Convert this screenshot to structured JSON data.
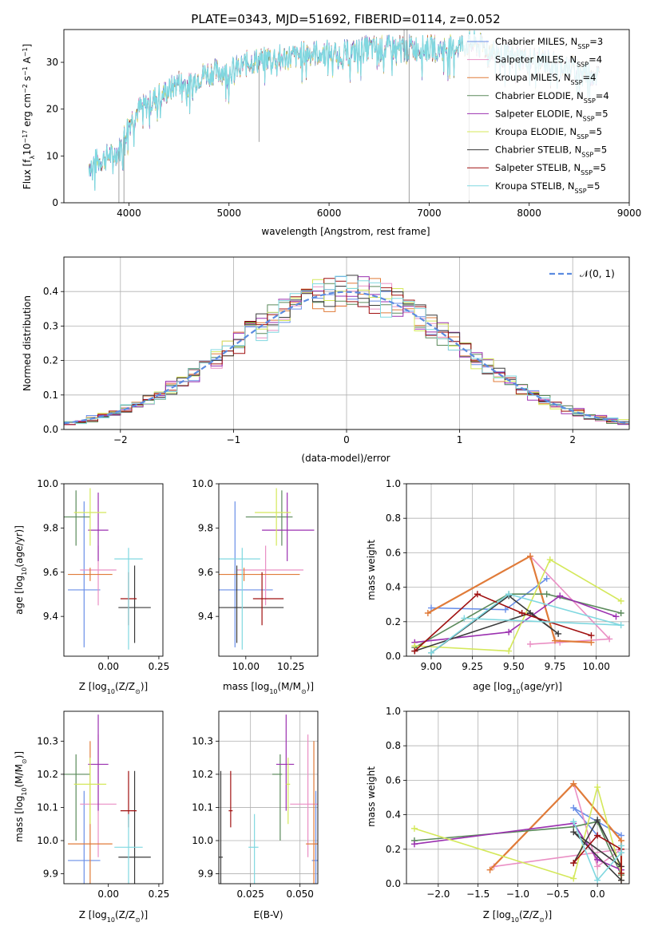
{
  "colors": {
    "Chabrier MILES": "#6a8fe8",
    "Salpeter MILES": "#ea8fc4",
    "Kroupa MILES": "#e07b39",
    "Chabrier ELODIE": "#5b8a5b",
    "Salpeter ELODIE": "#9b30b0",
    "Kroupa ELODIE": "#d4e85a",
    "Chabrier STELIB": "#3a3a3a",
    "Salpeter STELIB": "#a01010",
    "Kroupa STELIB": "#80d8e0"
  },
  "chart_data": [
    {
      "type": "line",
      "title": "PLATE=0343, MJD=51692, FIBERID=0114, z=0.052",
      "xlabel": "wavelength [Angstrom, rest frame]",
      "ylabel": "Flux [f",
      "ylabel_sub": "λ",
      "ylabel_rest": "10",
      "ylabel_exp": "−17",
      "ylabel_tail": " erg cm",
      "ylabel_tail_exp": "−2",
      "ylabel_tail2": " s",
      "ylabel_tail2_exp": "−1",
      "ylabel_tail3": " A",
      "ylabel_tail3_exp": "−1",
      "ylabel_end": "]",
      "xlim": [
        3350,
        9000
      ],
      "ylim": [
        0,
        37
      ],
      "xticks": [
        "4000",
        "5000",
        "6000",
        "7000",
        "8000",
        "9000"
      ],
      "yticks": [
        "0",
        "10",
        "20",
        "30"
      ],
      "xtick_vals": [
        4000,
        5000,
        6000,
        7000,
        8000,
        9000
      ],
      "ytick_vals": [
        0,
        10,
        20,
        30
      ],
      "legend": [
        {
          "label": "Chabrier MILES, N",
          "sub": "SSP",
          "tail": "=3"
        },
        {
          "label": "Salpeter MILES, N",
          "sub": "SSP",
          "tail": "=4"
        },
        {
          "label": "Kroupa MILES, N",
          "sub": "SSP",
          "tail": "=4"
        },
        {
          "label": "Chabrier ELODIE, N",
          "sub": "SSP",
          "tail": "=4"
        },
        {
          "label": "Salpeter ELODIE, N",
          "sub": "SSP",
          "tail": "=5"
        },
        {
          "label": "Kroupa ELODIE, N",
          "sub": "SSP",
          "tail": "=5"
        },
        {
          "label": "Chabrier STELIB, N",
          "sub": "SSP",
          "tail": "=5"
        },
        {
          "label": "Salpeter STELIB, N",
          "sub": "SSP",
          "tail": "=5"
        },
        {
          "label": "Kroupa STELIB, N",
          "sub": "SSP",
          "tail": "=5"
        }
      ],
      "legend_placement": "right",
      "spectrum_envelope": {
        "x": [
          3600,
          3700,
          3800,
          3900,
          4000,
          4100,
          4200,
          4300,
          4400,
          4500,
          4600,
          4700,
          4800,
          4900,
          5000,
          5200,
          5400,
          5600,
          5800,
          6000,
          6200,
          6400,
          6600,
          6800,
          7000,
          7200,
          7400,
          7600,
          7800,
          8000,
          8200,
          8400,
          8600,
          8700
        ],
        "y": [
          8,
          9,
          10,
          11,
          17,
          20,
          21,
          23,
          24,
          26,
          25,
          27,
          28,
          28,
          28,
          30,
          31,
          31,
          32,
          32,
          32,
          33,
          33,
          33,
          33,
          33,
          34,
          33,
          31,
          31,
          30,
          29,
          28,
          27
        ]
      },
      "spikes": [
        {
          "x": 3900,
          "y_low": 0
        },
        {
          "x": 3950,
          "y_low": 0
        },
        {
          "x": 5300,
          "y_low": 13
        },
        {
          "x": 6800,
          "y_low": 0
        },
        {
          "x": 7400,
          "y_low": 0
        }
      ]
    },
    {
      "type": "line",
      "xlabel": "(data-model)/error",
      "ylabel": "Normed distribution",
      "xlim": [
        -2.5,
        2.5
      ],
      "ylim": [
        0,
        0.5
      ],
      "xticks": [
        "−2",
        "−1",
        "0",
        "1",
        "2"
      ],
      "xtick_vals": [
        -2,
        -1,
        0,
        1,
        2
      ],
      "yticks": [
        "0.0",
        "0.1",
        "0.2",
        "0.3",
        "0.4"
      ],
      "ytick_vals": [
        0,
        0.1,
        0.2,
        0.3,
        0.4
      ],
      "legend": [
        {
          "label": "𝒩(0, 1)"
        }
      ],
      "legend_placement": "top-right",
      "grid": true,
      "bin_width": 0.1
    },
    {
      "type": "scatter",
      "xlabel": "Z [log",
      "xlabel_sub": "10",
      "xlabel_tail": "(Z/Z",
      "xlabel_sub2": "⊙",
      "xlabel_end": ")]",
      "ylabel": "age  [log",
      "ylabel_sub": "10",
      "ylabel_tail": "(age/yr)]",
      "xlim": [
        -0.22,
        0.27
      ],
      "ylim": [
        9.22,
        10.0
      ],
      "xticks": [
        "0.00",
        "0.25"
      ],
      "xtick_vals": [
        0,
        0.25
      ],
      "yticks": [
        "9.4",
        "9.6",
        "9.8",
        "10.0"
      ],
      "ytick_vals": [
        9.4,
        9.6,
        9.8,
        10.0
      ]
    },
    {
      "type": "scatter",
      "xlabel": "mass [log",
      "xlabel_sub": "10",
      "xlabel_tail": "(M/M",
      "xlabel_sub2": "⊙",
      "xlabel_end": ")]",
      "xlim": [
        9.85,
        10.4
      ],
      "ylim": [
        9.22,
        10.0
      ],
      "xticks": [
        "10.00",
        "10.25"
      ],
      "xtick_vals": [
        10.0,
        10.25
      ],
      "yticks": [
        "9.4",
        "9.6",
        "9.8",
        "10.0"
      ],
      "ytick_vals": [
        9.4,
        9.6,
        9.8,
        10.0
      ]
    },
    {
      "type": "line",
      "xlabel": "age  [log",
      "xlabel_sub": "10",
      "xlabel_tail": "(age/yr)]",
      "ylabel": "mass weight",
      "xlim": [
        8.85,
        10.2
      ],
      "ylim": [
        0,
        1
      ],
      "xticks": [
        "9.00",
        "9.25",
        "9.50",
        "9.75",
        "10.00"
      ],
      "xtick_vals": [
        9.0,
        9.25,
        9.5,
        9.75,
        10.0
      ],
      "yticks": [
        "0.0",
        "0.2",
        "0.4",
        "0.6",
        "0.8",
        "1.0"
      ],
      "ytick_vals": [
        0,
        0.2,
        0.4,
        0.6,
        0.8,
        1.0
      ],
      "grid": true
    },
    {
      "type": "scatter",
      "xlabel": "Z [log",
      "xlabel_sub": "10",
      "xlabel_tail": "(Z/Z",
      "xlabel_sub2": "⊙",
      "xlabel_end": ")]",
      "ylabel": "mass [log",
      "ylabel_sub": "10",
      "ylabel_tail": "(M/M",
      "ylabel_sub2": "⊙",
      "ylabel_end": ")]",
      "xlim": [
        -0.22,
        0.27
      ],
      "ylim": [
        9.87,
        10.39
      ],
      "xticks": [
        "0.00",
        "0.25"
      ],
      "xtick_vals": [
        0,
        0.25
      ],
      "yticks": [
        "9.9",
        "10.0",
        "10.1",
        "10.2",
        "10.3"
      ],
      "ytick_vals": [
        9.9,
        10.0,
        10.1,
        10.2,
        10.3
      ]
    },
    {
      "type": "scatter",
      "xlabel": "E(B-V)",
      "xlim": [
        0.009,
        0.059
      ],
      "ylim": [
        9.87,
        10.39
      ],
      "xticks": [
        "0.025",
        "0.050"
      ],
      "xtick_vals": [
        0.025,
        0.05
      ],
      "yticks": [
        "9.9",
        "10.0",
        "10.1",
        "10.2",
        "10.3"
      ],
      "ytick_vals": [
        9.9,
        10.0,
        10.1,
        10.2,
        10.3
      ],
      "grid": true
    },
    {
      "type": "line",
      "xlabel": "Z [log",
      "xlabel_sub": "10",
      "xlabel_tail": "(Z/Z",
      "xlabel_sub2": "⊙",
      "xlabel_end": ")]",
      "ylabel": "mass weight",
      "xlim": [
        -2.4,
        0.4
      ],
      "ylim": [
        0,
        1
      ],
      "xticks": [
        "−2.0",
        "−1.5",
        "−1.0",
        "−0.5",
        "0.0"
      ],
      "xtick_vals": [
        -2.0,
        -1.5,
        -1.0,
        -0.5,
        0.0
      ],
      "yticks": [
        "0.0",
        "0.2",
        "0.4",
        "0.6",
        "0.8",
        "1.0"
      ],
      "ytick_vals": [
        0,
        0.2,
        0.4,
        0.6,
        0.8,
        1.0
      ],
      "grid": true
    }
  ],
  "fits": [
    {
      "name": "Chabrier MILES",
      "Z": -0.12,
      "Z_err": 0.08,
      "age": 9.52,
      "age_lo": 9.26,
      "age_hi": 9.92,
      "mass": 9.94,
      "mass_lo": 9.72,
      "mass_hi": 10.15,
      "ebv": 0.058,
      "ebv_lo": 0.056,
      "ebv_hi": 0.059,
      "ssp_age": [
        9.0,
        9.45,
        9.7
      ],
      "ssp_w": [
        0.28,
        0.27,
        0.45
      ],
      "ssp_Z": [
        0.3,
        -0.3,
        0.0
      ],
      "ssp_wZ": [
        0.28,
        0.44,
        0.28
      ]
    },
    {
      "name": "Salpeter MILES",
      "Z": -0.05,
      "Z_err": 0.09,
      "age": 9.61,
      "age_lo": 9.45,
      "age_hi": 9.72,
      "mass": 10.11,
      "mass_lo": 9.95,
      "mass_hi": 10.32,
      "ebv": 0.054,
      "ebv_lo": 0.045,
      "ebv_hi": 0.059,
      "ssp_age": [
        9.6,
        9.78,
        10.08,
        9.6
      ],
      "ssp_w": [
        0.07,
        0.08,
        0.1,
        0.58
      ],
      "ssp_Z": [
        -1.3,
        0.3,
        0.0,
        -0.3
      ],
      "ssp_wZ": [
        0.1,
        0.2,
        0.1,
        0.58
      ]
    },
    {
      "name": "Kroupa MILES",
      "Z": -0.09,
      "Z_err": 0.11,
      "age": 9.59,
      "age_lo": 9.56,
      "age_hi": 9.62,
      "mass": 9.99,
      "mass_lo": 9.7,
      "mass_hi": 10.3,
      "ebv": 0.057,
      "ebv_lo": 0.053,
      "ebv_hi": 0.059,
      "ssp_age": [
        8.98,
        9.6,
        9.75,
        9.97
      ],
      "ssp_w": [
        0.25,
        0.58,
        0.09,
        0.08
      ],
      "ssp_Z": [
        -1.35,
        -0.3,
        0.3,
        0.3
      ],
      "ssp_wZ": [
        0.08,
        0.58,
        0.25,
        0.02
      ]
    },
    {
      "name": "Chabrier ELODIE",
      "Z": -0.16,
      "Z_err": 0.07,
      "age": 9.85,
      "age_lo": 9.72,
      "age_hi": 9.97,
      "mass": 10.2,
      "mass_lo": 10.0,
      "mass_hi": 10.26,
      "ebv": 0.04,
      "ebv_lo": 0.036,
      "ebv_hi": 0.041,
      "ssp_age": [
        8.9,
        9.47,
        9.7,
        10.15
      ],
      "ssp_w": [
        0.05,
        0.36,
        0.36,
        0.25
      ],
      "ssp_Z": [
        -2.3,
        -0.3,
        0.0,
        0.3
      ],
      "ssp_wZ": [
        0.25,
        0.33,
        0.36,
        0.05
      ]
    },
    {
      "name": "Salpeter ELODIE",
      "Z": -0.05,
      "Z_err": 0.05,
      "age": 9.79,
      "age_lo": 9.65,
      "age_hi": 9.96,
      "mass": 10.23,
      "mass_lo": 10.09,
      "mass_hi": 10.38,
      "ebv": 0.043,
      "ebv_lo": 0.038,
      "ebv_hi": 0.047,
      "ssp_age": [
        8.9,
        9.47,
        9.78,
        10.12
      ],
      "ssp_w": [
        0.08,
        0.14,
        0.35,
        0.23
      ],
      "ssp_Z": [
        -2.3,
        -0.3,
        0.0,
        0.3
      ],
      "ssp_wZ": [
        0.23,
        0.35,
        0.14,
        0.08
      ]
    },
    {
      "name": "Kroupa ELODIE",
      "Z": -0.09,
      "Z_err": 0.08,
      "age": 9.87,
      "age_lo": 9.72,
      "age_hi": 9.98,
      "mass": 10.17,
      "mass_lo": 10.05,
      "mass_hi": 10.25,
      "ebv": 0.044,
      "ebv_lo": 0.043,
      "ebv_hi": 0.045,
      "ssp_age": [
        8.9,
        9.47,
        9.72,
        10.15
      ],
      "ssp_w": [
        0.06,
        0.03,
        0.56,
        0.32
      ],
      "ssp_Z": [
        -2.3,
        -0.3,
        0.0,
        0.3
      ],
      "ssp_wZ": [
        0.32,
        0.03,
        0.56,
        0.06
      ]
    },
    {
      "name": "Chabrier STELIB",
      "Z": 0.13,
      "Z_err": 0.08,
      "age": 9.44,
      "age_lo": 9.28,
      "age_hi": 9.63,
      "mass": 9.95,
      "mass_lo": 9.7,
      "mass_hi": 10.21,
      "ebv": 0.01,
      "ebv_lo": 0.009,
      "ebv_hi": 0.011,
      "ssp_age": [
        9.0,
        9.47,
        9.77,
        9.6,
        8.9
      ],
      "ssp_w": [
        0.02,
        0.35,
        0.13,
        0.25,
        0.03
      ],
      "ssp_Z": [
        -0.3,
        0.0,
        0.3,
        -0.3,
        0.3
      ],
      "ssp_wZ": [
        0.12,
        0.37,
        0.1,
        0.3,
        0.02
      ]
    },
    {
      "name": "Salpeter STELIB",
      "Z": 0.1,
      "Z_err": 0.04,
      "age": 9.48,
      "age_lo": 9.36,
      "age_hi": 9.6,
      "mass": 10.09,
      "mass_lo": 10.04,
      "mass_hi": 10.21,
      "ebv": 0.015,
      "ebv_lo": 0.014,
      "ebv_hi": 0.016,
      "ssp_age": [
        8.9,
        9.28,
        9.55,
        9.97
      ],
      "ssp_w": [
        0.03,
        0.36,
        0.25,
        0.12
      ],
      "ssp_Z": [
        -0.3,
        0.0,
        0.3,
        0.3
      ],
      "ssp_wZ": [
        0.12,
        0.28,
        0.2,
        0.06
      ]
    },
    {
      "name": "Kroupa STELIB",
      "Z": 0.1,
      "Z_err": 0.07,
      "age": 9.66,
      "age_lo": 9.25,
      "age_hi": 9.71,
      "mass": 9.98,
      "mass_lo": 9.75,
      "mass_hi": 10.08,
      "ebv": 0.027,
      "ebv_lo": 0.024,
      "ebv_hi": 0.029,
      "ssp_age": [
        9.0,
        9.47,
        10.15,
        9.2
      ],
      "ssp_w": [
        0.02,
        0.36,
        0.18,
        0.22
      ],
      "ssp_Z": [
        -0.3,
        0.0,
        0.3,
        0.3
      ],
      "ssp_wZ": [
        0.36,
        0.02,
        0.18,
        0.22
      ]
    }
  ]
}
